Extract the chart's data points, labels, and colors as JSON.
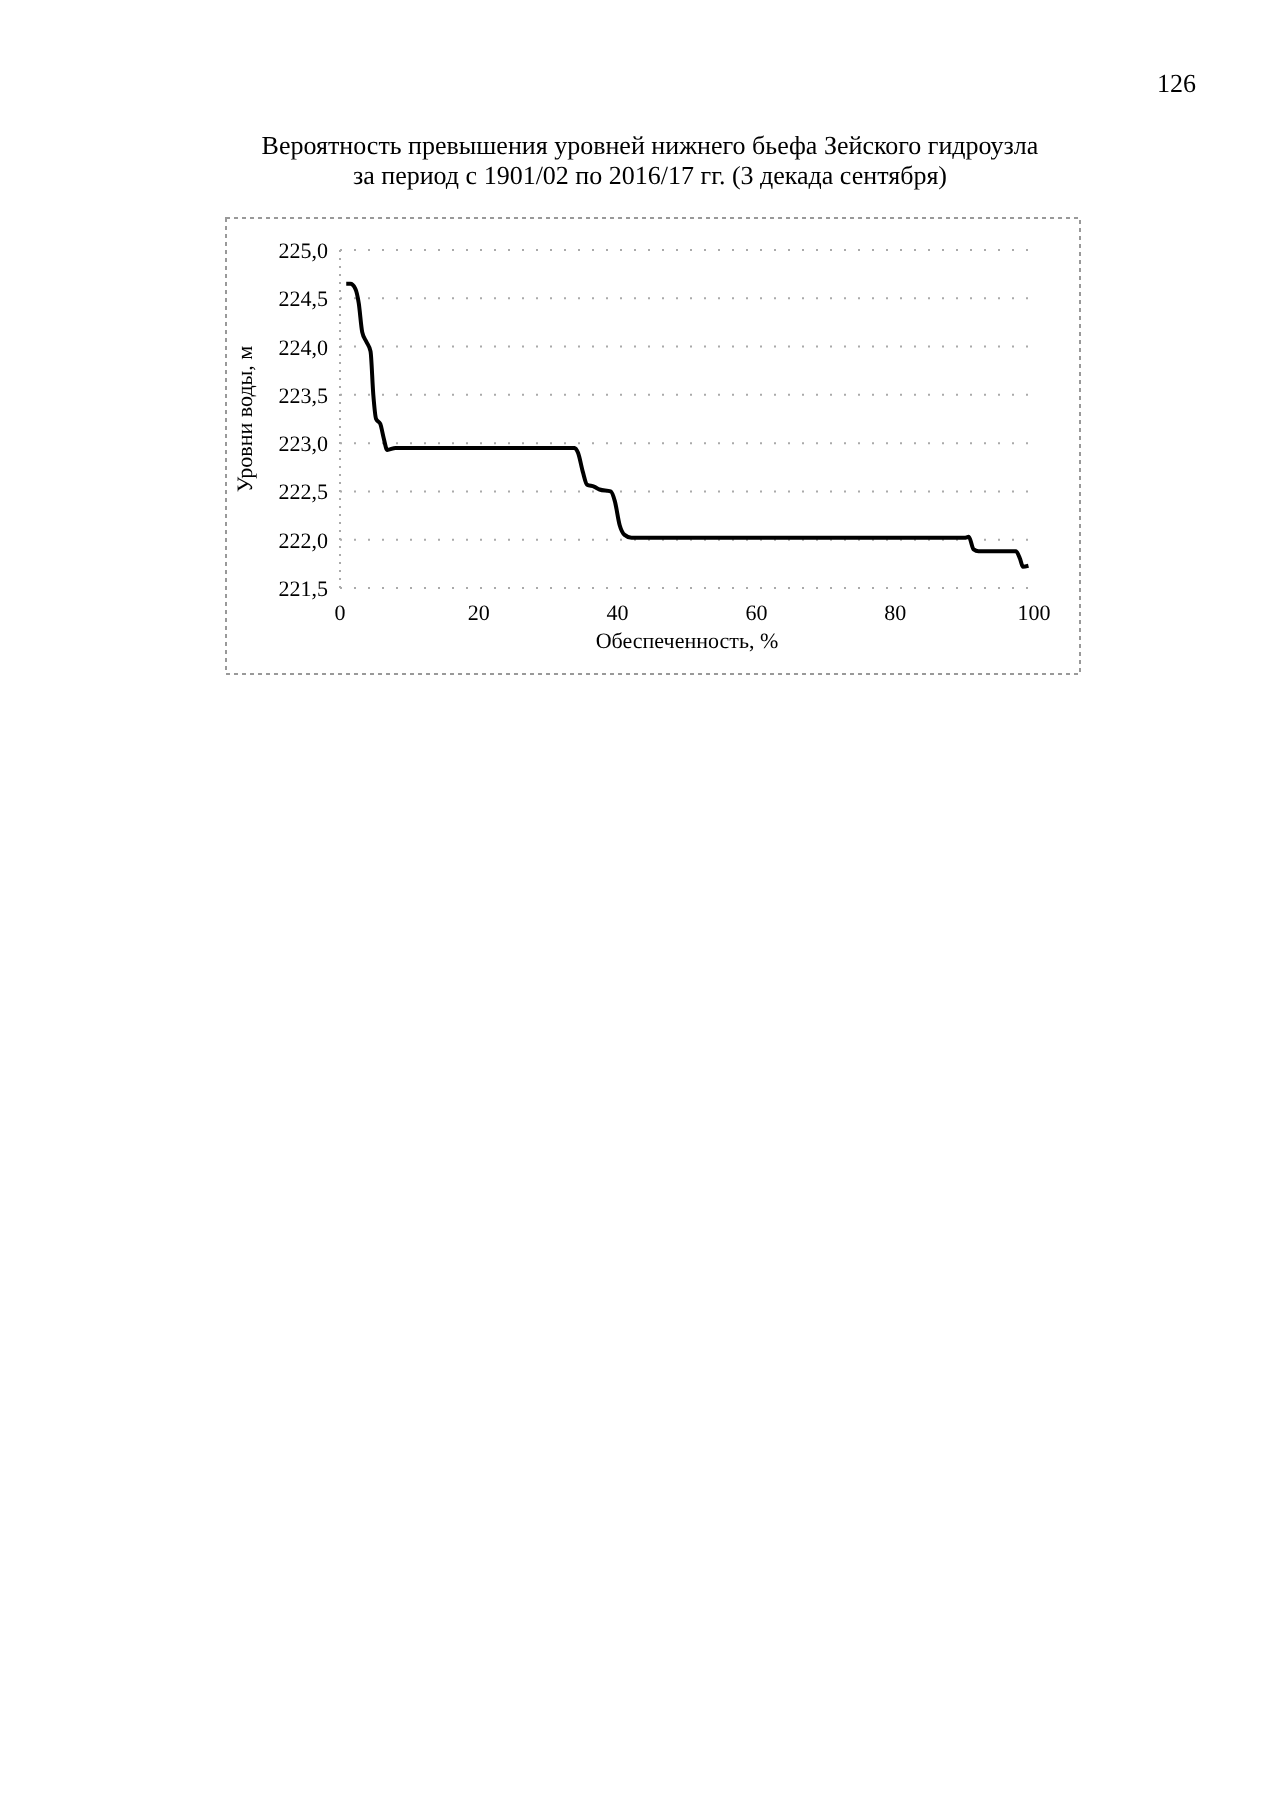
{
  "chart_data": {
    "type": "line",
    "title": "Вероятность превышения уровней нижнего бьефа Зейского гидроузла\nза период с 1901/02 по 2016/17 гг. (3 декада сентября)",
    "xlabel": "Обеспеченность, %",
    "ylabel": "Уровни воды, м",
    "annotations": [
      "126"
    ],
    "x": [
      0.9,
      1.5,
      2.2,
      2.7,
      3.2,
      3.8,
      4.4,
      4.8,
      5.2,
      5.8,
      6.3,
      6.8,
      8,
      33.8,
      34.3,
      35,
      35.6,
      36.6,
      37.4,
      39,
      39.6,
      40.3,
      41,
      42,
      90,
      90.6,
      91.3,
      92,
      97.4,
      98,
      98.4,
      99.2
    ],
    "series": [
      {
        "color": "#000000",
        "values": [
          224.65,
          224.65,
          224.6,
          224.45,
          224.15,
          224.05,
          223.95,
          223.5,
          223.25,
          223.2,
          223.05,
          222.93,
          222.95,
          222.95,
          222.9,
          222.7,
          222.57,
          222.55,
          222.52,
          222.5,
          222.4,
          222.15,
          222.05,
          222.02,
          222.02,
          222.03,
          221.9,
          221.88,
          221.88,
          221.8,
          221.72,
          221.73
        ]
      }
    ],
    "xlim": [
      0,
      100
    ],
    "xticks": [
      0,
      20,
      40,
      60,
      80,
      100
    ],
    "ylim": [
      221.5,
      225
    ],
    "yticks": [
      {
        "value": 221.5,
        "label": "221,5"
      },
      {
        "value": 222,
        "label": "222,0"
      },
      {
        "value": 222.5,
        "label": "222,5"
      },
      {
        "value": 223,
        "label": "223,0"
      },
      {
        "value": 223.5,
        "label": "223,5"
      },
      {
        "value": 224,
        "label": "224,0"
      },
      {
        "value": 224.5,
        "label": "224,5"
      },
      {
        "value": 225,
        "label": "225,0"
      }
    ],
    "grid": "y",
    "marker": "none",
    "line_style": "solid"
  }
}
